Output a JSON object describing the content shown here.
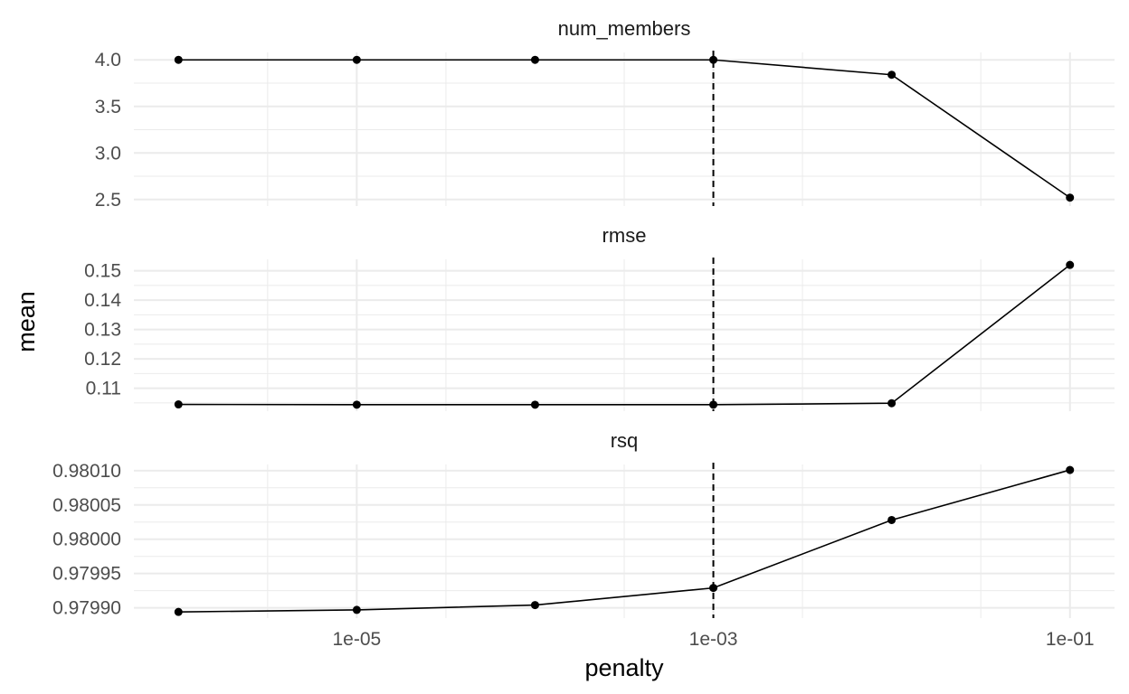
{
  "chart_data": {
    "type": "line",
    "xlabel": "penalty",
    "ylabel": "mean",
    "x_scale": "log10",
    "x": [
      1e-06,
      1e-05,
      0.0001,
      0.001,
      0.01,
      0.1
    ],
    "x_ticks": [
      1e-05,
      0.001,
      0.1
    ],
    "x_tick_labels": [
      "1e-05",
      "1e-03",
      "1e-01"
    ],
    "reference_line": {
      "x": 0.001,
      "style": "dashed"
    },
    "grid": true,
    "colors": {
      "line": "#000000",
      "grid": "#ebebeb",
      "reference": "#000000"
    },
    "facets": [
      {
        "title": "num_members",
        "values": [
          4.0,
          4.0,
          4.0,
          4.0,
          3.84,
          2.52
        ],
        "ylim": [
          2.43,
          4.08
        ],
        "y_ticks": [
          2.5,
          3.0,
          3.5,
          4.0
        ],
        "y_tick_labels": [
          "2.5",
          "3.0",
          "3.5",
          "4.0"
        ]
      },
      {
        "title": "rmse",
        "values": [
          0.1045,
          0.1044,
          0.1044,
          0.1044,
          0.1049,
          0.152
        ],
        "ylim": [
          0.1022,
          0.1539
        ],
        "y_ticks": [
          0.11,
          0.12,
          0.13,
          0.14,
          0.15
        ],
        "y_tick_labels": [
          "0.11",
          "0.12",
          "0.13",
          "0.14",
          "0.15"
        ]
      },
      {
        "title": "rsq",
        "values": [
          0.979894,
          0.979897,
          0.979904,
          0.979929,
          0.980028,
          0.980101
        ],
        "ylim": [
          0.979885,
          0.980109
        ],
        "y_ticks": [
          0.9799,
          0.97995,
          0.98,
          0.98005,
          0.9801
        ],
        "y_tick_labels": [
          "0.97990",
          "0.97995",
          "0.98000",
          "0.98005",
          "0.98010"
        ]
      }
    ]
  }
}
